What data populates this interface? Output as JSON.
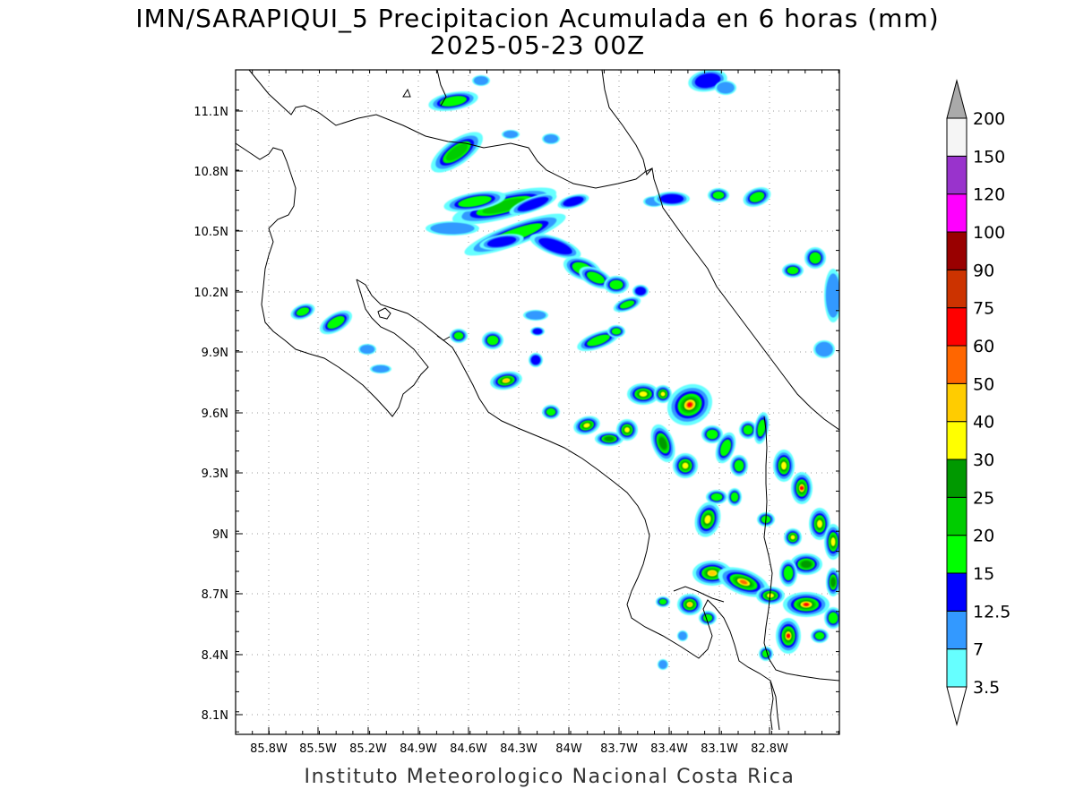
{
  "title": {
    "line1": "IMN/SARAPIQUI_5 Precipitacion Acumulada en 6 horas (mm)",
    "line2": "2025-05-23 00Z"
  },
  "footer": "Instituto Meteorologico Nacional Costa Rica",
  "map": {
    "lon_range": [
      -86.0,
      -82.6
    ],
    "lat_range": [
      8.0,
      11.3
    ],
    "x_ticks": [
      "85.8W",
      "85.5W",
      "85.2W",
      "84.9W",
      "84.6W",
      "84.3W",
      "84W",
      "83.7W",
      "83.4W",
      "83.1W",
      "82.8W"
    ],
    "y_ticks": [
      "11.1N",
      "10.8N",
      "10.5N",
      "10.2N",
      "9.9N",
      "9.6N",
      "9.3N",
      "9N",
      "8.7N",
      "8.4N",
      "8.1N"
    ],
    "gridlines": true
  },
  "colorbar": {
    "levels": [
      "3.5",
      "7",
      "12.5",
      "15",
      "20",
      "25",
      "30",
      "40",
      "50",
      "60",
      "75",
      "90",
      "100",
      "120",
      "150",
      "200"
    ],
    "colors": [
      "#66ffff",
      "#3399ff",
      "#0000ff",
      "#00ff00",
      "#00cc00",
      "#009900",
      "#ffff00",
      "#ffcc00",
      "#ff6600",
      "#ff0000",
      "#cc3300",
      "#990000",
      "#ff00ff",
      "#9933cc",
      "#f5f5f5",
      "#aaaaaa"
    ]
  }
}
